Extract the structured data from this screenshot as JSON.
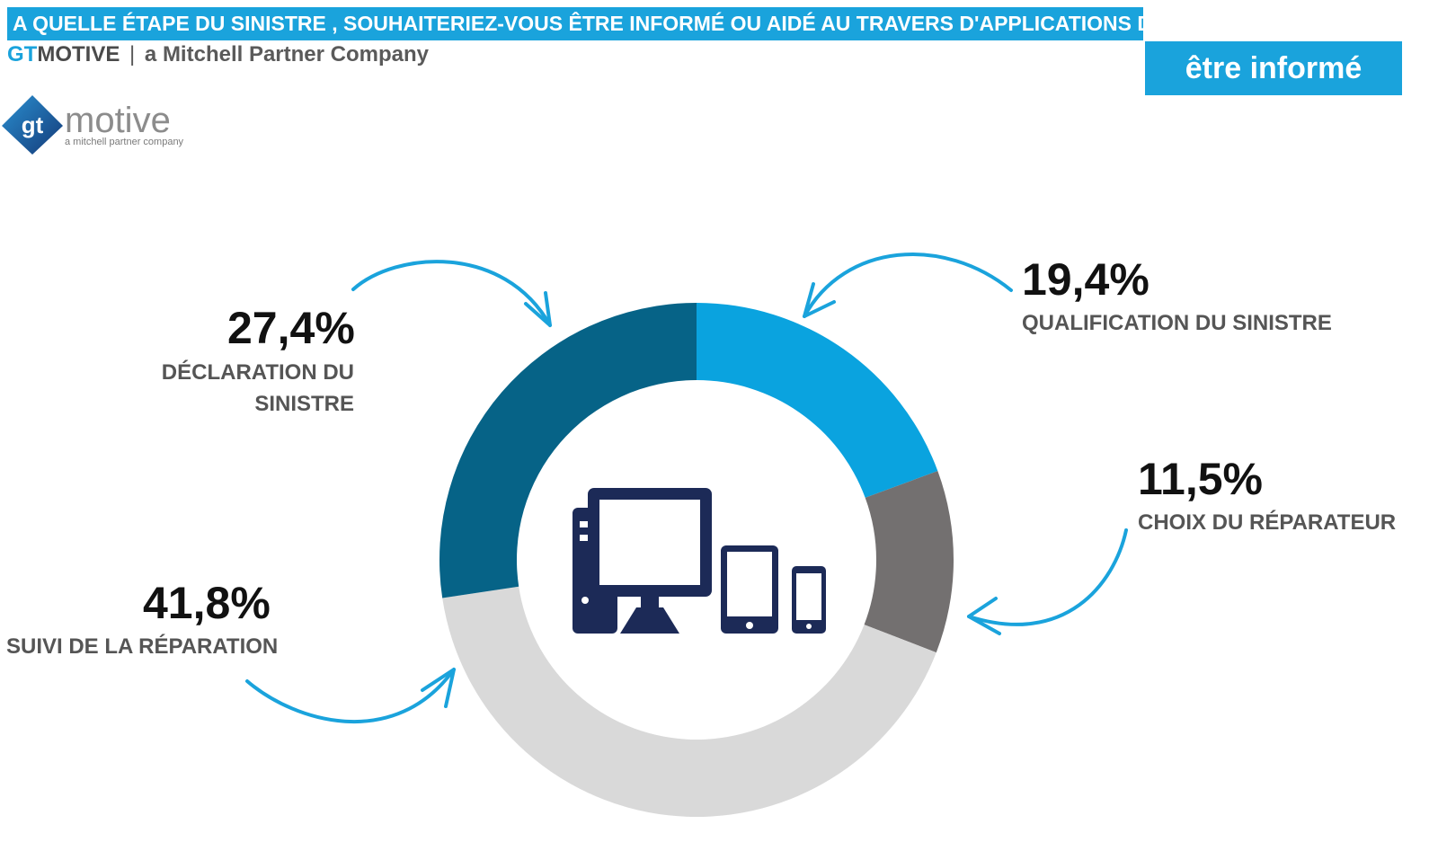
{
  "header": {
    "title": "A QUELLE ÉTAPE DU SINISTRE , SOUHAITERIEZ-VOUS ÊTRE INFORMÉ OU AIDÉ AU TRAVERS D'APPLICATIONS DIGITALES ?",
    "brand_gt": "GT",
    "brand_motive": "MOTIVE",
    "separator": "|",
    "company": "a Mitchell Partner Company"
  },
  "badge": {
    "label": "être informé"
  },
  "logo": {
    "word": "motive",
    "mark": "gt",
    "tagline": "a mitchell partner company"
  },
  "labels": {
    "declaration": {
      "value": "27,4%",
      "line1": "DÉCLARATION DU",
      "line2": "SINISTRE"
    },
    "qualification": {
      "value": "19,4%",
      "line1": "QUALIFICATION DU SINISTRE"
    },
    "choix": {
      "value": "11,5%",
      "line1": "CHOIX DU RÉPARATEUR"
    },
    "suivi": {
      "value": "41,8%",
      "line1": "SUIVI DE LA RÉPARATION"
    }
  },
  "center_icon": "computer-tablet-phone-icon",
  "colors": {
    "accent": "#1aa3dc",
    "qualification": "#0aa3df",
    "choix": "#737070",
    "suivi": "#d9d9d9",
    "declaration": "#066387",
    "icon": "#1c2a57"
  },
  "chart_data": {
    "type": "pie",
    "subtype": "donut",
    "title": "A QUELLE ÉTAPE DU SINISTRE , SOUHAITERIEZ-VOUS ÊTRE INFORMÉ OU AIDÉ AU TRAVERS D'APPLICATIONS DIGITALES ?",
    "categories": [
      "QUALIFICATION DU SINISTRE",
      "CHOIX DU RÉPARATEUR",
      "SUIVI DE LA RÉPARATION",
      "DÉCLARATION DU SINISTRE"
    ],
    "values": [
      19.4,
      11.5,
      41.8,
      27.4
    ],
    "unit": "%",
    "colors": [
      "#0aa3df",
      "#737070",
      "#d9d9d9",
      "#066387"
    ]
  }
}
